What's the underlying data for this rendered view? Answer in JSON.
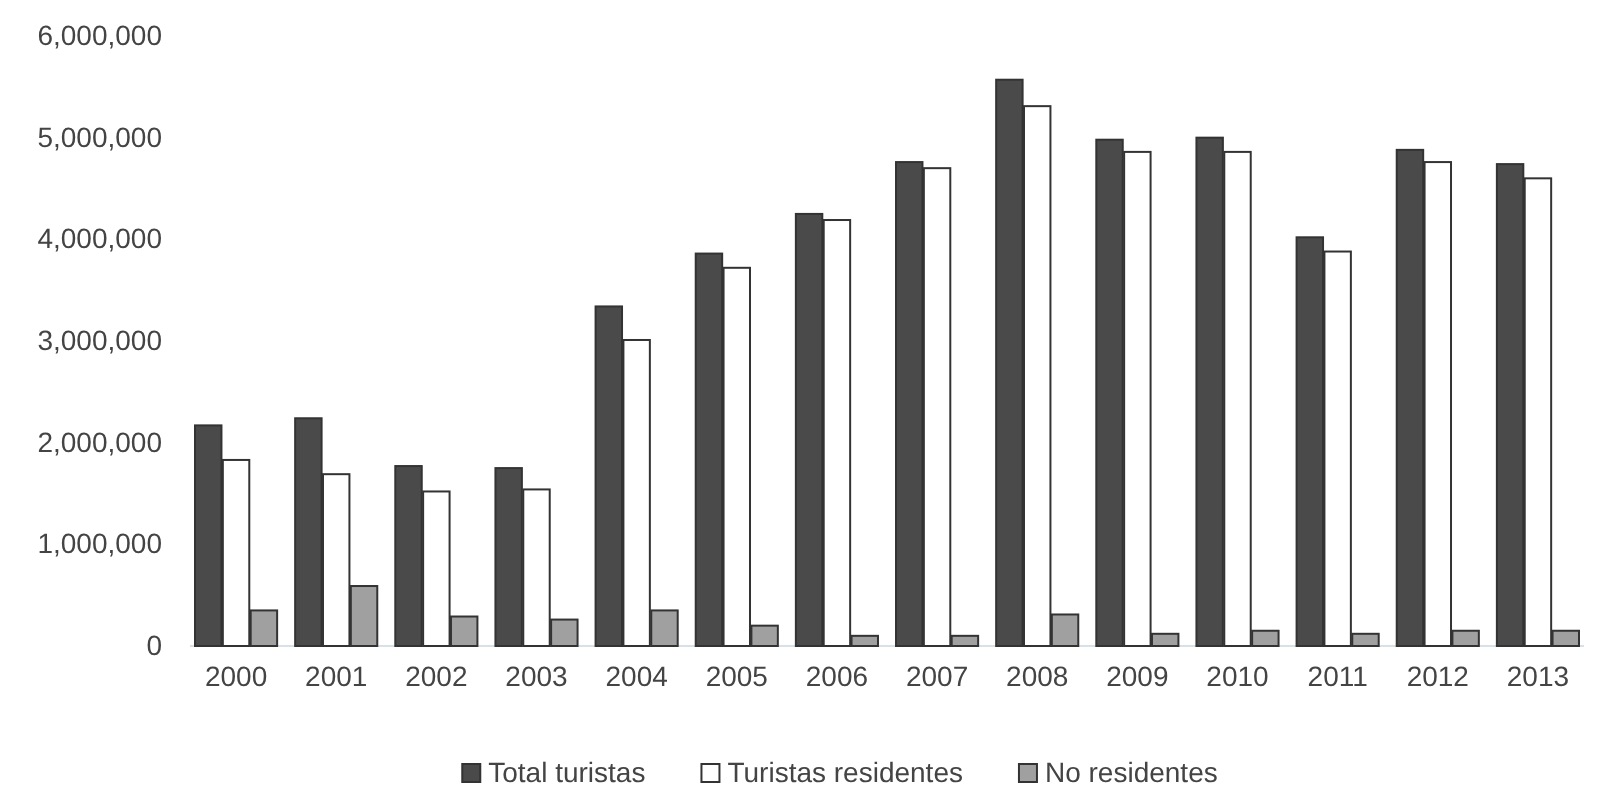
{
  "chart_data": {
    "type": "bar",
    "categories": [
      "2000",
      "2001",
      "2002",
      "2003",
      "2004",
      "2005",
      "2006",
      "2007",
      "2008",
      "2009",
      "2010",
      "2011",
      "2012",
      "2013"
    ],
    "series": [
      {
        "name": "Total turistas",
        "color": "#4a4a4a",
        "values": [
          2170000,
          2240000,
          1770000,
          1750000,
          3340000,
          3860000,
          4250000,
          4760000,
          5570000,
          4980000,
          5000000,
          4020000,
          4880000,
          4740000
        ]
      },
      {
        "name": "Turistas residentes",
        "color": "#ffffff",
        "values": [
          1830000,
          1690000,
          1520000,
          1540000,
          3010000,
          3720000,
          4190000,
          4700000,
          5310000,
          4860000,
          4860000,
          3880000,
          4760000,
          4600000
        ]
      },
      {
        "name": "No residentes",
        "color": "#a0a0a0",
        "values": [
          350000,
          590000,
          290000,
          260000,
          350000,
          200000,
          100000,
          100000,
          310000,
          120000,
          150000,
          120000,
          150000,
          150000
        ]
      }
    ],
    "ylim": [
      0,
      6000000
    ],
    "yticks": [
      {
        "value": 0,
        "label": "0"
      },
      {
        "value": 1000000,
        "label": "1,000,000"
      },
      {
        "value": 2000000,
        "label": "2,000,000"
      },
      {
        "value": 3000000,
        "label": "3,000,000"
      },
      {
        "value": 4000000,
        "label": "4,000,000"
      },
      {
        "value": 5000000,
        "label": "5,000,000"
      },
      {
        "value": 6000000,
        "label": "6,000,000"
      }
    ],
    "legend": "bottom"
  }
}
